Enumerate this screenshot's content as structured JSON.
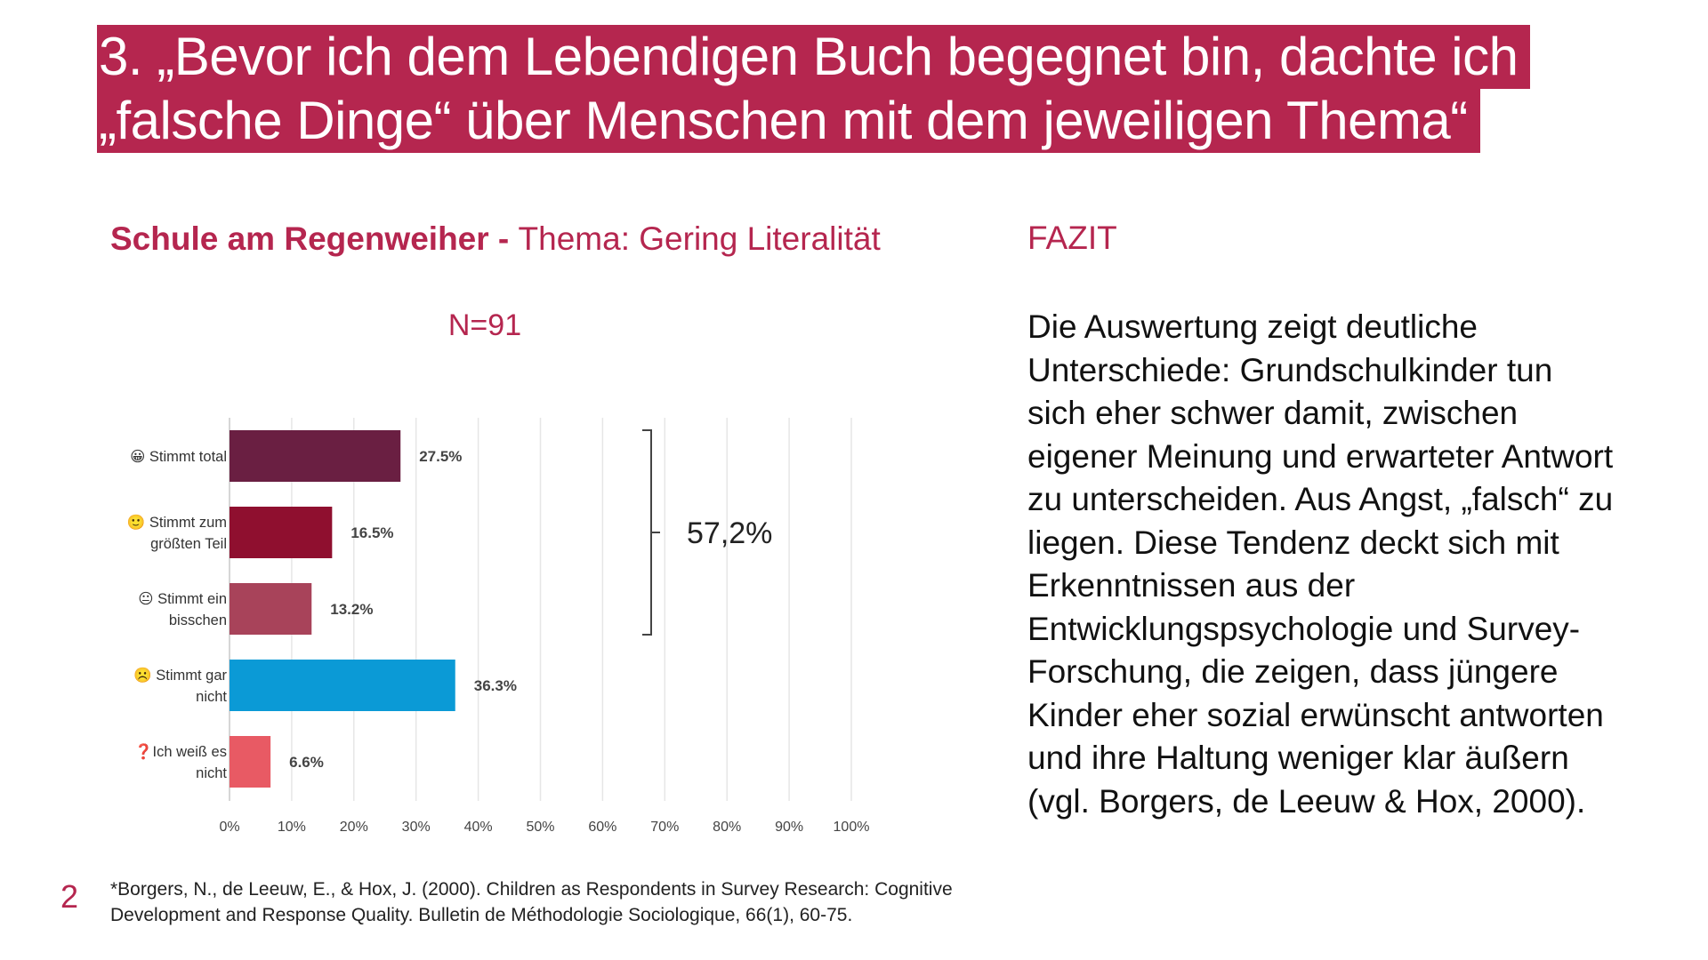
{
  "title": {
    "line1": "3. „Bevor ich dem Lebendigen Buch begegnet bin, dachte ich",
    "line2": "„falsche Dinge“ über Menschen mit dem jeweiligen Thema“"
  },
  "subtitle": {
    "school": "Schule am Regenweiher",
    "separator": " - ",
    "topic": "Thema: Gering Literalität"
  },
  "sample": "N=91",
  "chart_data": {
    "type": "bar",
    "orientation": "horizontal",
    "categories": [
      [
        "😀 Stimmt total"
      ],
      [
        "🙂 Stimmt zum",
        "größten Teil"
      ],
      [
        "😐 Stimmt ein",
        "bisschen"
      ],
      [
        "☹️ Stimmt gar",
        "nicht"
      ],
      [
        "❓Ich weiß es",
        "nicht"
      ]
    ],
    "values": [
      27.5,
      16.5,
      13.2,
      36.3,
      6.6
    ],
    "data_labels": [
      "27.5%",
      "16.5%",
      "13.2%",
      "36.3%",
      "6.6%"
    ],
    "colors": [
      "#6a1f42",
      "#8f0f2f",
      "#a8435a",
      "#0b9ad6",
      "#e85a64"
    ],
    "xlim": [
      0,
      100
    ],
    "xticks": [
      0,
      10,
      20,
      30,
      40,
      50,
      60,
      70,
      80,
      90,
      100
    ],
    "xtick_labels": [
      "0%",
      "10%",
      "20%",
      "30%",
      "40%",
      "50%",
      "60%",
      "70%",
      "80%",
      "90%",
      "100%"
    ],
    "grid": true,
    "annotation": {
      "text": "57,2%",
      "spans_categories": [
        0,
        2
      ]
    }
  },
  "fazit": {
    "heading": "FAZIT",
    "body": "Die Auswertung zeigt deutliche Unterschiede: Grundschulkinder tun sich eher schwer damit, zwischen eigener Meinung und erwarteter Antwort zu unterscheiden. Aus Angst, „falsch“ zu liegen. Diese Tendenz deckt sich mit Erkenntnissen aus der Entwicklungspsychologie und Survey-Forschung, die zeigen, dass jüngere Kinder eher sozial erwünscht antworten und ihre Haltung weniger klar äußern (vgl. Borgers, de Leeuw & Hox, 2000)."
  },
  "page_number": "2",
  "footnote": {
    "line1": "*Borgers, N., de Leeuw, E., & Hox, J. (2000). Children as Respondents in Survey Research: Cognitive",
    "line2": "Development and Response Quality. Bulletin de Méthodologie Sociologique, 66(1), 60-75."
  }
}
